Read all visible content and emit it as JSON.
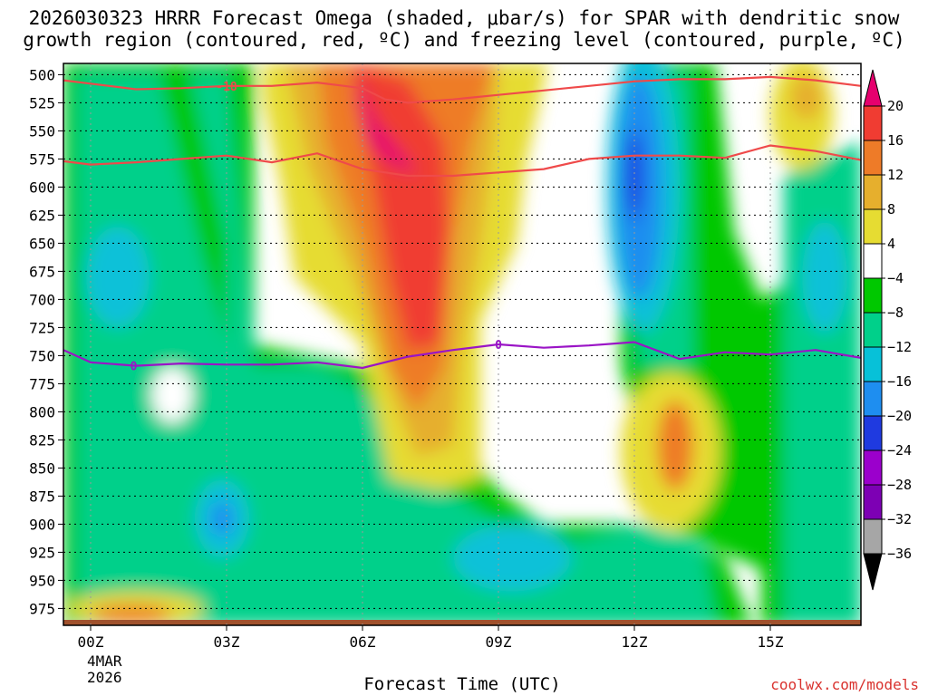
{
  "title": {
    "line1": "2026030323 HRRR Forecast Omega (shaded, μbar/s) for SPAR with dendritic snow",
    "line2": "growth region (contoured, red, ºC) and freezing level (contoured, purple, ºC)"
  },
  "credit": "coolwx.com/models",
  "date_block": {
    "month_day": "4MAR",
    "year": "2026"
  },
  "chart_data": {
    "type": "heatmap",
    "xlabel": "Forecast Time (UTC)",
    "x_ticks": [
      "00Z",
      "03Z",
      "06Z",
      "09Z",
      "12Z",
      "15Z"
    ],
    "x_range_hours": [
      -0.6,
      17.0
    ],
    "y_ticks": [
      500,
      525,
      550,
      575,
      600,
      625,
      650,
      675,
      700,
      725,
      750,
      775,
      800,
      825,
      850,
      875,
      900,
      925,
      950,
      975
    ],
    "y_range_mb": [
      490,
      990
    ],
    "grid": true,
    "colorbar": {
      "labels": [
        "20",
        "16",
        "12",
        "8",
        "4",
        "−4",
        "−8",
        "−12",
        "−16",
        "−20",
        "−24",
        "−28",
        "−32",
        "−36"
      ],
      "levels": [
        -36,
        -32,
        -28,
        -24,
        -20,
        -16,
        -12,
        -8,
        -4,
        4,
        8,
        12,
        16,
        20
      ],
      "colors": [
        "#000000",
        "#a6a6a6",
        "#7d00b4",
        "#9b00cc",
        "#1f3ae0",
        "#1e8ef0",
        "#07c1d8",
        "#00d08a",
        "#00c800",
        "#ffffff",
        "#e6dc32",
        "#e6af2d",
        "#ee7b28",
        "#f03c32",
        "#e6006e"
      ]
    },
    "series": [
      {
        "name": "-18",
        "color": "#ef4a4a",
        "x": [
          -0.6,
          0,
          1,
          2,
          3,
          4,
          5,
          6,
          6.5,
          7,
          8,
          9,
          10,
          11,
          12,
          13,
          14,
          15,
          16,
          17
        ],
        "y": [
          505,
          508,
          513,
          512,
          510,
          510,
          507,
          512,
          522,
          525,
          522,
          518,
          514,
          510,
          506,
          504,
          504,
          502,
          505,
          510
        ]
      },
      {
        "name": "-10",
        "color": "#ef4a4a",
        "x": [
          -0.6,
          0,
          1,
          2,
          3,
          4,
          5,
          6,
          7,
          8,
          9,
          10,
          11,
          12,
          13,
          14,
          15,
          16,
          17
        ],
        "y": [
          577,
          580,
          578,
          575,
          572,
          578,
          570,
          584,
          590,
          590,
          587,
          584,
          575,
          572,
          572,
          574,
          563,
          568,
          576
        ]
      },
      {
        "name": "0",
        "color": "#9a14c6",
        "x": [
          -0.6,
          0,
          1,
          2,
          3,
          4,
          5,
          6,
          7,
          8,
          9,
          10,
          11,
          12,
          13,
          14,
          15,
          16,
          17
        ],
        "y": [
          745,
          756,
          759,
          757,
          758,
          758,
          756,
          761,
          751,
          745,
          740,
          743,
          741,
          738,
          753,
          747,
          749,
          745,
          752
        ]
      }
    ]
  }
}
